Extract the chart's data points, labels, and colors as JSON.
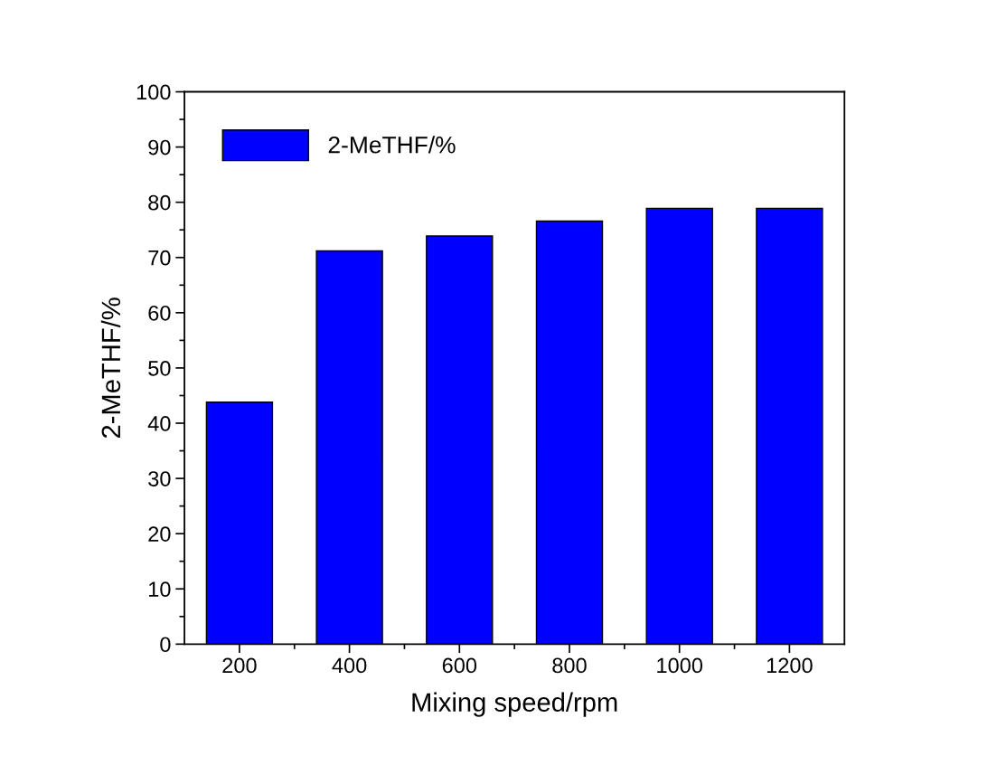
{
  "chart_data": {
    "type": "bar",
    "xlabel": "Mixing speed/rpm",
    "ylabel": "2-MeTHF/%",
    "categories": [
      "200",
      "400",
      "600",
      "800",
      "1000",
      "1200"
    ],
    "series": [
      {
        "name": "2-MeTHF/%",
        "color": "#0000ff",
        "values": [
          43.8,
          71.2,
          73.9,
          76.6,
          78.9,
          78.9
        ]
      }
    ],
    "ylim": [
      0,
      100
    ],
    "yticks": [
      0,
      10,
      20,
      30,
      40,
      50,
      60,
      70,
      80,
      90,
      100
    ],
    "grid": false,
    "legend": "top left"
  }
}
